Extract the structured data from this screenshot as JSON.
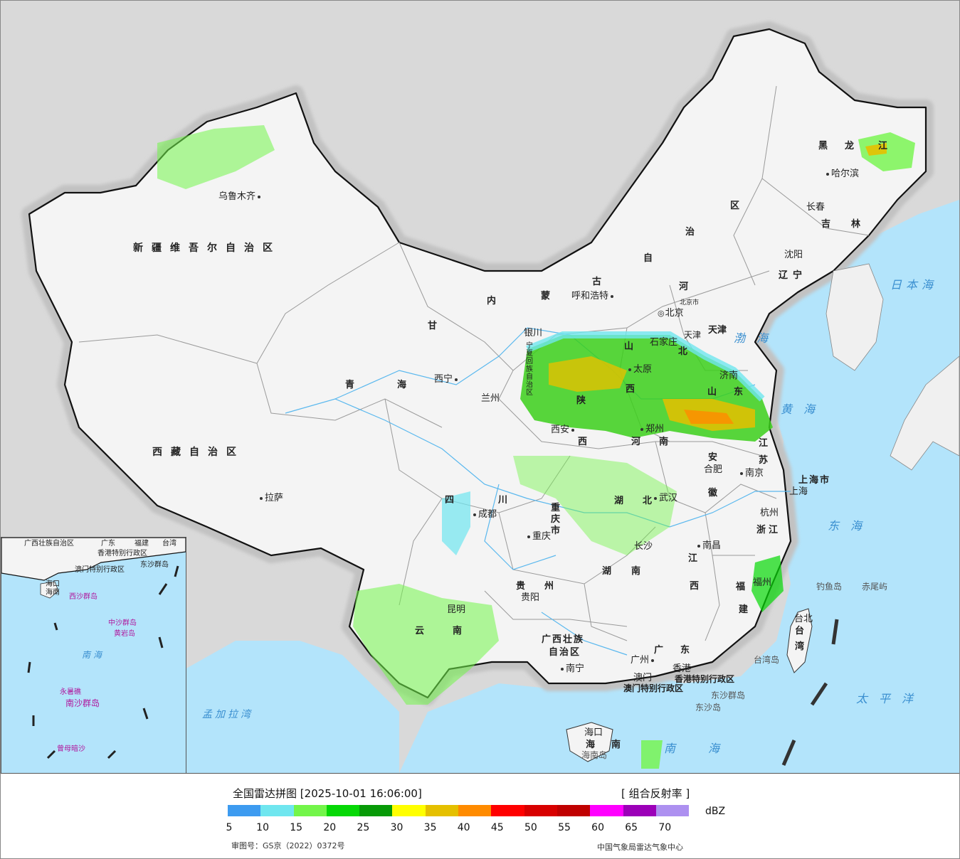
{
  "map": {
    "title": "全国雷达拼图",
    "timestamp": "[2025-10-01 16:06:00]",
    "product": "[ 组合反射率 ]",
    "review_number": "审图号：GS京（2022）0372号",
    "organization": "中国气象局雷达气象中心",
    "capital_label": "北京",
    "beijing_city_label": "北京市",
    "provinces": {
      "xinjiang": "新疆维吾尔自治区",
      "xizang": "西藏自治区",
      "qinghai_1": "青",
      "qinghai_2": "海",
      "gansu": "甘",
      "neimenggu_1": "内",
      "neimenggu_2": "蒙",
      "neimenggu_3": "古",
      "neimenggu_4": "自",
      "neimenggu_5": "治",
      "neimenggu_6": "区",
      "heilongjiang_1": "黑",
      "heilongjiang_2": "龙",
      "heilongjiang_3": "江",
      "jilin_1": "吉",
      "jilin_2": "林",
      "liaoning_1": "辽",
      "liaoning_2": "宁",
      "hebei_1": "河",
      "hebei_2": "北",
      "tianjin": "天津",
      "shandong_1": "山",
      "shandong_2": "东",
      "shanxi_1": "山",
      "shanxi_2": "西",
      "shaanxi": "陕",
      "shaanxi_2": "西",
      "henan_1": "河",
      "henan_2": "南",
      "ningxia": "宁夏回族自治区",
      "sichuan_1": "四",
      "sichuan_2": "川",
      "chongqing": "重庆市",
      "hubei_1": "湖",
      "hubei_2": "北",
      "anhui_1": "安",
      "anhui_2": "徽",
      "jiangsu_1": "江",
      "jiangsu_2": "苏",
      "shanghai": "上海市",
      "zhejiang": "浙江",
      "jiangxi_1": "江",
      "jiangxi_2": "西",
      "hunan_1": "湖",
      "hunan_2": "南",
      "guizhou_1": "贵",
      "guizhou_2": "州",
      "yunnan_1": "云",
      "yunnan_2": "南",
      "fujian_1": "福",
      "fujian_2": "建",
      "guangxi_1": "广西壮族",
      "guangxi_2": "自治区",
      "guangdong_1": "广",
      "guangdong_2": "东",
      "taiwan_1": "台",
      "taiwan_2": "湾",
      "hainan_1": "海",
      "hainan_2": "南",
      "hongkong": "香港特别行政区",
      "macao": "澳门特别行政区"
    },
    "cities": {
      "urumqi": "乌鲁木齐",
      "lhasa": "拉萨",
      "xining": "西宁",
      "lanzhou": "兰州",
      "yinchuan": "银川",
      "hohhot": "呼和浩特",
      "shijiazhuang": "石家庄",
      "taiyuan": "太原",
      "jinan": "济南",
      "xian": "西安",
      "zhengzhou": "郑州",
      "hefei": "合肥",
      "nanjing": "南京",
      "shanghai": "上海",
      "hangzhou": "杭州",
      "wuhan": "武汉",
      "changsha": "长沙",
      "nanchang": "南昌",
      "fuzhou": "福州",
      "taipei": "台北",
      "chengdu": "成都",
      "chongqing": "重庆",
      "guiyang": "贵阳",
      "kunming": "昆明",
      "nanning": "南宁",
      "guangzhou": "广州",
      "hongkong": "香港",
      "macao": "澳门",
      "haikou": "海口",
      "harbin": "哈尔滨",
      "changchun": "长春",
      "shenyang": "沈阳",
      "tianjin_city": "天津"
    },
    "seas": {
      "bohai": "渤海",
      "huanghai": "黄海",
      "donghai": "东海",
      "nanhai": "南海",
      "taipingyang": "太平洋",
      "ribenhai": "日本海",
      "bengal": "孟加拉湾"
    },
    "islands": {
      "diaoyu": "钓鱼岛",
      "chiwei": "赤尾屿",
      "taiwan_island": "台湾岛",
      "hainan_island": "海南岛",
      "dongsha_qundao": "东沙群岛",
      "dongsha_dao": "东沙岛"
    },
    "inset": {
      "guangxi": "广西壮族自治区",
      "guangdong": "广东",
      "fujian": "福建",
      "taiwan": "台湾",
      "hongkong": "香港特别行政区",
      "macao": "澳门特别行政区",
      "dongsha": "东沙群岛",
      "hainan": "海南",
      "haikou": "海口",
      "xisha": "西沙群岛",
      "zhongsha": "中沙群岛",
      "huangyan": "黄岩岛",
      "nansha": "南沙群岛",
      "nanhai": "南海",
      "zengmu": "曾母暗沙",
      "yongshu": "永暑礁"
    }
  },
  "legend": {
    "unit": "dBZ",
    "colors": [
      "#3d9bf0",
      "#6fe6ef",
      "#73f54a",
      "#06d806",
      "#079a07",
      "#ffff00",
      "#e5c000",
      "#ff8b00",
      "#ff0000",
      "#d80000",
      "#c00000",
      "#ff00ff",
      "#9c00b8",
      "#ad90f0"
    ],
    "ticks": [
      "5",
      "10",
      "15",
      "20",
      "25",
      "30",
      "35",
      "40",
      "45",
      "50",
      "55",
      "60",
      "65",
      "70"
    ]
  }
}
